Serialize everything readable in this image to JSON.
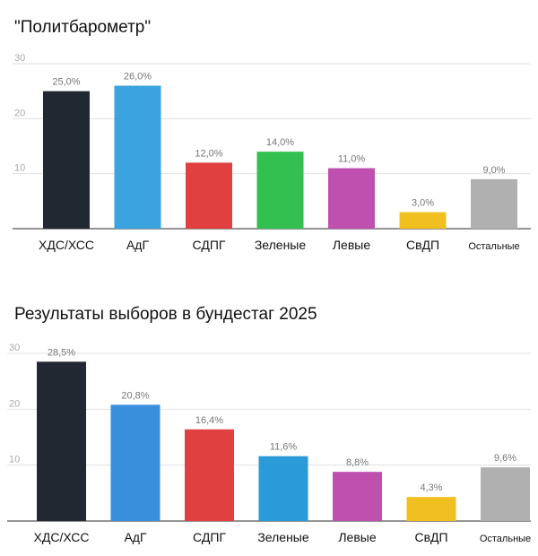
{
  "chart_data": [
    {
      "type": "bar",
      "title": "\"Политбарометр\"",
      "categories": [
        "ХДС/ХСС",
        "АдГ",
        "СДПГ",
        "Зеленые",
        "Левые",
        "СвДП",
        "Остальные"
      ],
      "values": [
        25.0,
        26.0,
        12.0,
        14.0,
        11.0,
        3.0,
        9.0
      ],
      "value_labels": [
        "25,0%",
        "26,0%",
        "12,0%",
        "14,0%",
        "11,0%",
        "3,0%",
        "9,0%"
      ],
      "colors": [
        "#222831",
        "#3aa3e0",
        "#e04040",
        "#33c050",
        "#c050b0",
        "#f0c020",
        "#b0b0b0"
      ],
      "ylim": [
        0,
        30
      ],
      "yticks": [
        "10",
        "20",
        "30"
      ],
      "ytick_values": [
        10,
        20,
        30
      ],
      "xlabel": "",
      "ylabel": ""
    },
    {
      "type": "bar",
      "title": "Результаты выборов в бундестаг 2025",
      "categories": [
        "ХДС/ХСС",
        "АдГ",
        "СДПГ",
        "Зеленые",
        "Левые",
        "СвДП",
        "Остальные"
      ],
      "values": [
        28.5,
        20.8,
        16.4,
        11.6,
        8.8,
        4.3,
        9.6
      ],
      "value_labels": [
        "28,5%",
        "20,8%",
        "16,4%",
        "11,6%",
        "8,8%",
        "4,3%",
        "9,6%"
      ],
      "colors": [
        "#222831",
        "#3a8fdc",
        "#e04040",
        "#2a9ad8",
        "#c050b0",
        "#f0c020",
        "#b0b0b0"
      ],
      "ylim": [
        0,
        30
      ],
      "yticks": [
        "10",
        "20",
        "30"
      ],
      "ytick_values": [
        10,
        20,
        30
      ],
      "xlabel": "",
      "ylabel": ""
    }
  ]
}
